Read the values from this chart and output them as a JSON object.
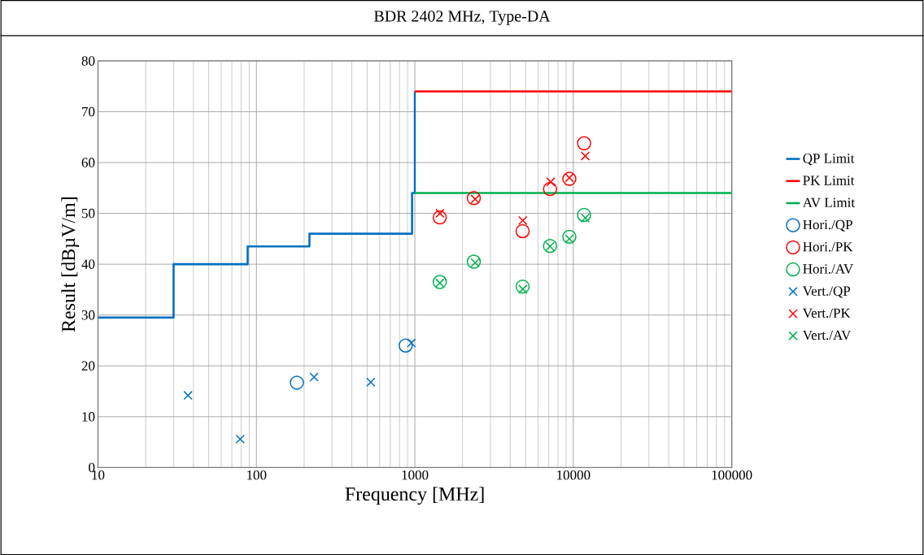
{
  "chart_data": {
    "type": "scatter",
    "title": "BDR 2402 MHz, Type-DA",
    "xlabel": "Frequency [MHz]",
    "ylabel": "Result [dBµV/m]",
    "log": "x",
    "grid": true,
    "legend": "right",
    "xlim": [
      10,
      100000
    ],
    "ylim": [
      0,
      80
    ],
    "xticks": [
      10,
      100,
      1000,
      10000,
      100000
    ],
    "yticks": [
      0,
      10,
      20,
      30,
      40,
      50,
      60,
      70,
      80
    ],
    "series": [
      {
        "name": "QP Limit",
        "type": "line",
        "color": "#0070c0",
        "marker": "none",
        "x": [
          10,
          30,
          30,
          88,
          88,
          216,
          216,
          960,
          960,
          1000,
          1000
        ],
        "values": [
          29.5,
          29.5,
          40,
          40,
          43.5,
          43.5,
          46,
          46,
          54,
          54,
          74
        ]
      },
      {
        "name": "PK Limit",
        "type": "line",
        "color": "#ff0000",
        "marker": "none",
        "x": [
          1000,
          100000
        ],
        "values": [
          74,
          74
        ]
      },
      {
        "name": "AV Limit",
        "type": "line",
        "color": "#00b050",
        "marker": "none",
        "x": [
          1000,
          100000
        ],
        "values": [
          54,
          54
        ]
      },
      {
        "name": "Hori./QP",
        "color": "#0070c0",
        "marker": "circle",
        "x": [
          180,
          875
        ],
        "values": [
          16.7,
          24.0
        ]
      },
      {
        "name": "Hori./PK",
        "color": "#ff0000",
        "marker": "circle",
        "x": [
          1436,
          2355,
          4786,
          7130,
          9440,
          11700
        ],
        "values": [
          49.2,
          53.0,
          46.5,
          54.8,
          56.8,
          63.8
        ]
      },
      {
        "name": "Hori./AV",
        "color": "#00b050",
        "marker": "circle",
        "x": [
          1436,
          2355,
          4786,
          7130,
          9440,
          11700
        ],
        "values": [
          36.5,
          40.5,
          35.6,
          43.6,
          45.4,
          49.7
        ]
      },
      {
        "name": "Vert./QP",
        "color": "#0070c0",
        "marker": "cross",
        "x": [
          37,
          79,
          231,
          527,
          951
        ],
        "values": [
          14.2,
          5.6,
          17.8,
          16.8,
          24.5
        ]
      },
      {
        "name": "Vert./PK",
        "color": "#ff0000",
        "marker": "cross",
        "x": [
          1440,
          2400,
          4800,
          7200,
          9440,
          11900
        ],
        "values": [
          50.0,
          52.8,
          48.6,
          56.2,
          57.0,
          61.3
        ]
      },
      {
        "name": "Vert./AV",
        "color": "#00b050",
        "marker": "cross",
        "x": [
          1436,
          2400,
          4800,
          7130,
          9440,
          11900
        ],
        "values": [
          36.3,
          40.3,
          35.1,
          43.5,
          45.0,
          49.1
        ]
      }
    ]
  }
}
